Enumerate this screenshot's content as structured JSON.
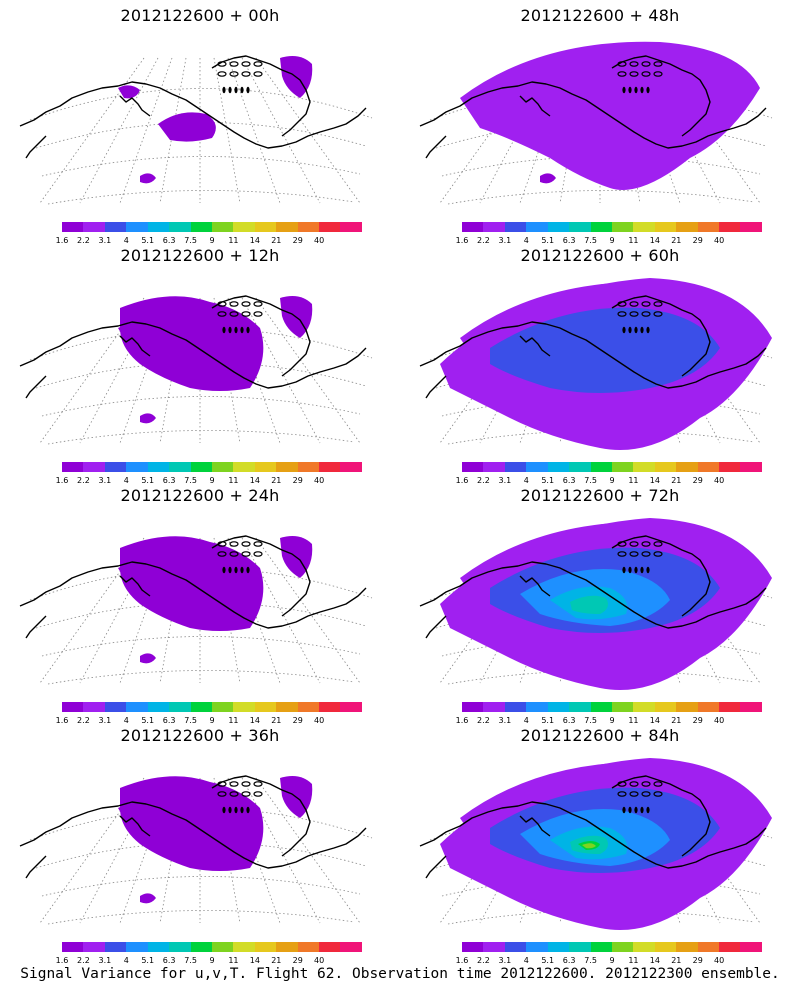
{
  "colors": [
    "#8f00d6",
    "#a020f0",
    "#3b4fe8",
    "#1e90ff",
    "#00b4e6",
    "#00c8b4",
    "#00d23c",
    "#7ed320",
    "#d2dc28",
    "#e6c81e",
    "#e6a014",
    "#f07828",
    "#f0283c",
    "#f01478"
  ],
  "colorbar_labels": [
    "1.6",
    "2.2",
    "3.1",
    "4",
    "5.1",
    "6.3",
    "7.5",
    "9",
    "11",
    "14",
    "21",
    "29",
    "40"
  ],
  "panels": [
    {
      "title": "2012122600 + 00h",
      "level": 0
    },
    {
      "title": "2012122600 + 48h",
      "level": 3
    },
    {
      "title": "2012122600 + 12h",
      "level": 1
    },
    {
      "title": "2012122600 + 60h",
      "level": 4
    },
    {
      "title": "2012122600 + 24h",
      "level": 1
    },
    {
      "title": "2012122600 + 72h",
      "level": 5
    },
    {
      "title": "2012122600 + 36h",
      "level": 2
    },
    {
      "title": "2012122600 + 84h",
      "level": 6
    }
  ],
  "footer": "Signal Variance for u,v,T. Flight 62. Observation time 2012122600. 2012122300 ensemble."
}
